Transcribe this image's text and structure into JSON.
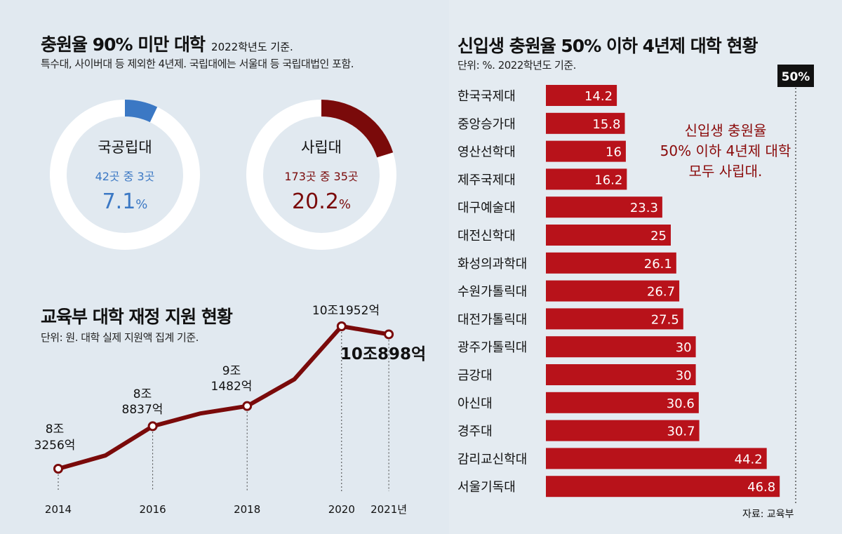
{
  "left_top": {
    "title": "충원율 90% 미만 대학",
    "title_note": "2022학년도 기준.",
    "subtitle": "특수대, 사이버대 등 제외한 4년제. 국립대에는 서울대 등 국립대법인 포함.",
    "donuts": [
      {
        "label": "국공립대",
        "count_text": "42곳 중 3곳",
        "pct_num": "7.1",
        "pct_sign": "%",
        "value": 7.1,
        "color": "#3b78c4"
      },
      {
        "label": "사립대",
        "count_text": "173곳 중 35곳",
        "pct_num": "20.2",
        "pct_sign": "%",
        "value": 20.2,
        "color": "#7a0a0a"
      }
    ]
  },
  "left_bottom": {
    "title": "교육부 대학 재정 지원 현황",
    "subtitle": "단위: 원. 대학 실제 지원액 집계 기준."
  },
  "right": {
    "title": "신입생 충원율 50% 이하 4년제 대학 현황",
    "subtitle": "단위: %. 2022학년도 기준.",
    "ref_label": "50%",
    "annotation": [
      "신입생 충원율",
      "50% 이하 4년제 대학",
      "모두 사립대."
    ],
    "source": "자료: 교육부"
  },
  "chart_data": [
    {
      "type": "pie",
      "title": "국공립대",
      "categories": [
        "국공립대"
      ],
      "values": [
        7.1
      ],
      "annotation": "42곳 중 3곳"
    },
    {
      "type": "pie",
      "title": "사립대",
      "categories": [
        "사립대"
      ],
      "values": [
        20.2
      ],
      "annotation": "173곳 중 35곳"
    },
    {
      "type": "line",
      "title": "교육부 대학 재정 지원 현황",
      "x": [
        2014,
        2015,
        2016,
        2017,
        2018,
        2019,
        2020,
        2021
      ],
      "values_eok": [
        83256,
        85000,
        88837,
        90500,
        91482,
        95000,
        101952,
        100898
      ],
      "tick_labels": [
        "2014",
        "2016",
        "2018",
        "2020",
        "2021년"
      ],
      "tick_years": [
        2014,
        2016,
        2018,
        2020,
        2021
      ],
      "point_labels": [
        {
          "x": 2014,
          "value": 83256,
          "lines": [
            "8조",
            "3256억"
          ]
        },
        {
          "x": 2016,
          "value": 88837,
          "lines": [
            "8조",
            "8837억"
          ]
        },
        {
          "x": 2018,
          "value": 91482,
          "lines": [
            "9조",
            "1482억"
          ]
        },
        {
          "x": 2020,
          "value": 101952,
          "lines": [
            "10조1952억"
          ]
        },
        {
          "x": 2021,
          "value": 100898,
          "lines": [
            "10조898억"
          ]
        }
      ],
      "ylim": [
        80000,
        104000
      ],
      "color": "#7a0a0a"
    },
    {
      "type": "bar",
      "orientation": "horizontal",
      "title": "신입생 충원율 50% 이하 4년제 대학 현황",
      "categories": [
        "한국국제대",
        "중앙승가대",
        "영산선학대",
        "제주국제대",
        "대구예술대",
        "대전신학대",
        "화성의과학대",
        "수원가톨릭대",
        "대전가톨릭대",
        "광주가톨릭대",
        "금강대",
        "아신대",
        "경주대",
        "감리교신학대",
        "서울기독대"
      ],
      "values": [
        14.2,
        15.8,
        16,
        16.2,
        23.3,
        25,
        26.1,
        26.7,
        27.5,
        30,
        30,
        30.6,
        30.7,
        44.2,
        46.8
      ],
      "value_labels": [
        "14.2",
        "15.8",
        "16",
        "16.2",
        "23.3",
        "25",
        "26.1",
        "26.7",
        "27.5",
        "30",
        "30",
        "30.6",
        "30.7",
        "44.2",
        "46.8"
      ],
      "reference_line": 50,
      "xlim": [
        0,
        50
      ],
      "color": "#b8121a"
    }
  ]
}
